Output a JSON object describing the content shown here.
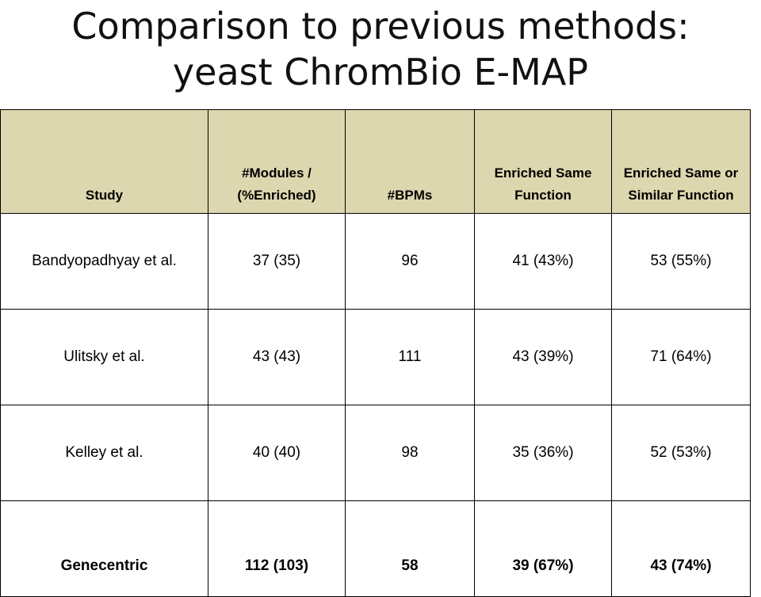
{
  "title": {
    "line1": "Comparison to previous methods:",
    "line2": "yeast ChromBio E-MAP"
  },
  "table": {
    "headers": [
      "Study",
      "#Modules / (%Enriched)",
      "#BPMs",
      "Enriched Same Function",
      "Enriched Same or Similar Function"
    ],
    "rows": [
      [
        "Bandyopadhyay et al.",
        "37 (35)",
        "96",
        "41 (43%)",
        "53 (55%)"
      ],
      [
        "Ulitsky et al.",
        "43 (43)",
        "111",
        "43 (39%)",
        "71 (64%)"
      ],
      [
        "Kelley et al.",
        "40 (40)",
        "98",
        "35 (36%)",
        "52 (53%)"
      ],
      [
        "Genecentric",
        "112 (103)",
        "58",
        "39 (67%)",
        "43 (74%)"
      ]
    ],
    "highlight_row": "Genecentric",
    "header_bg": "#dcd7ae"
  }
}
